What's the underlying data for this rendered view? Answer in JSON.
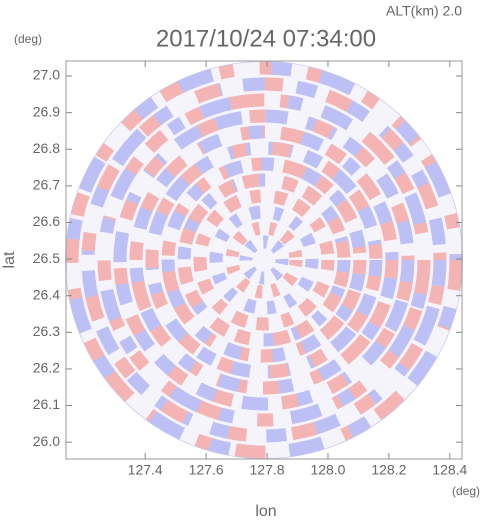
{
  "chart_data": {
    "type": "radar-field",
    "title": "2017/10/24 07:34:00",
    "subtitle": "ALT(km) 2.0",
    "x_label": "lon",
    "y_label": "lat",
    "x_unit": "(deg)",
    "y_unit": "(deg)",
    "xlim": [
      127.14,
      128.44
    ],
    "ylim": [
      25.954,
      27.041
    ],
    "xticks": [
      127.4,
      127.6,
      127.8,
      {
        "value": 128.0,
        "label": "128.0"
      },
      128.2,
      128.4
    ],
    "yticks": [
      {
        "value": 26.0,
        "label": "26.0"
      },
      26.1,
      26.2,
      26.3,
      26.4,
      26.5,
      26.6,
      26.7,
      26.8,
      26.9,
      {
        "value": 27.0,
        "label": "27.0"
      }
    ],
    "grid": false
  }
}
